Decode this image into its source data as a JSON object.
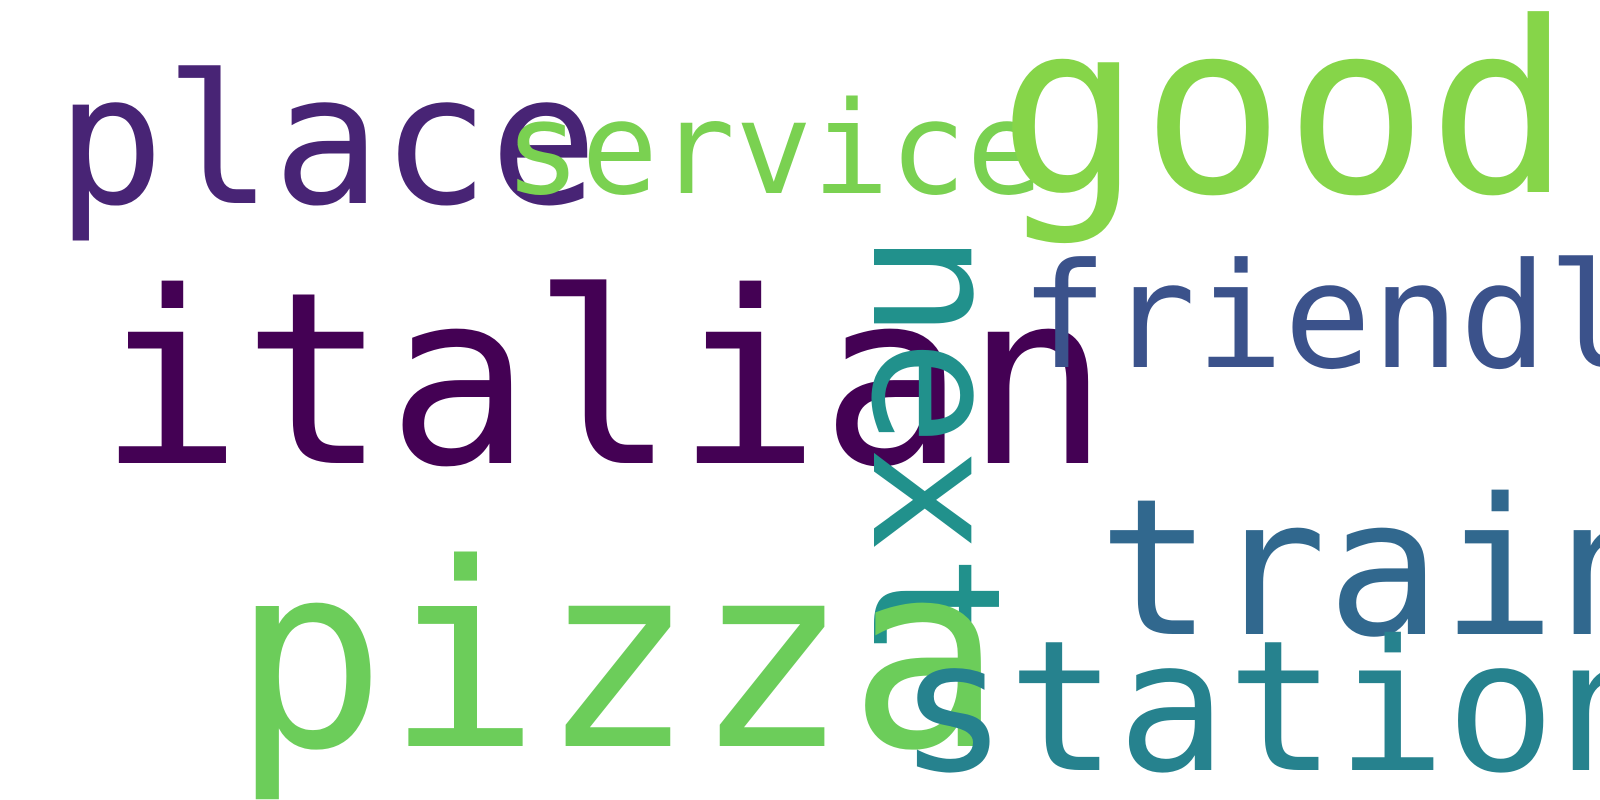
{
  "words": [
    {
      "text": "place",
      "color": "#482475"
    },
    {
      "text": "service",
      "color": "#7ad151"
    },
    {
      "text": "good",
      "color": "#86d549"
    },
    {
      "text": "italian",
      "color": "#440154"
    },
    {
      "text": "next",
      "color": "#21918c"
    },
    {
      "text": "friendly",
      "color": "#3b528b"
    },
    {
      "text": "train",
      "color": "#31688e"
    },
    {
      "text": "pizza",
      "color": "#6ccd5a"
    },
    {
      "text": "station",
      "color": "#26828e"
    }
  ]
}
